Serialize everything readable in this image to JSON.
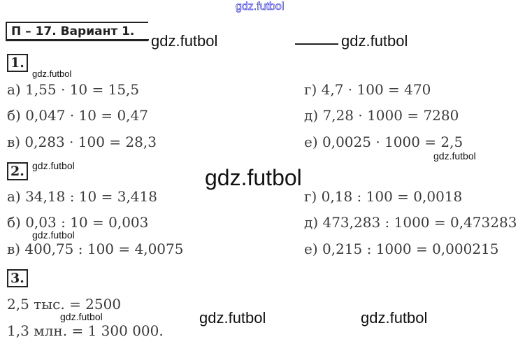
{
  "title": "П – 17. Вариант 1.",
  "sections": [
    {
      "number": "1.",
      "left": [
        "а) 1,55 · 10 = 15,5",
        "б) 0,047 · 10 = 0,47",
        "в) 0,283 · 100 = 28,3"
      ],
      "right": [
        "г) 4,7 · 100 = 470",
        "д) 7,28 · 1000 = 7280",
        "е) 0,0025 · 1000 = 2,5"
      ]
    },
    {
      "number": "2.",
      "left": [
        "а) 34,18 : 10 = 3,418",
        "б) 0,03 : 10 = 0,003",
        "в) 400,75 : 100 = 4,0075"
      ],
      "right": [
        "г) 0,18 : 100 = 0,0018",
        "д) 473,283 : 1000 = 0,473283",
        "е) 0,215 : 1000 = 0,000215"
      ]
    },
    {
      "number": "3.",
      "lines": [
        "2,5 тыс. = 2500",
        "1,3 млн. = 1 300 000."
      ]
    }
  ],
  "watermark": "gdz.futbol",
  "colors": {
    "watermark_top": "#3b3bd6",
    "text": "#3a3a3a"
  }
}
